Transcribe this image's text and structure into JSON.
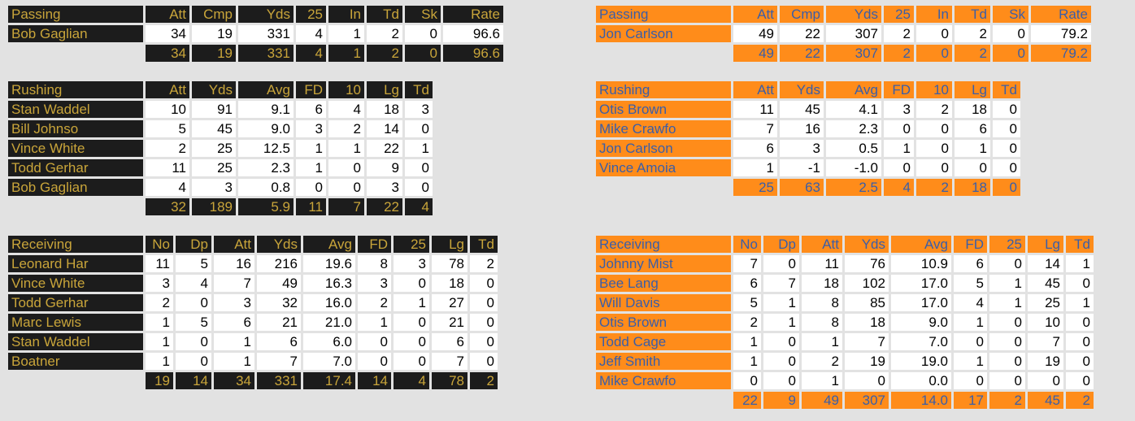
{
  "colors": {
    "home_bg": "#1c1c1c",
    "home_text": "#c9a53a",
    "away_bg": "#ff8c1a",
    "away_text": "#3a5ea8",
    "cell_bg": "#ffffff",
    "page_bg": "#e2e2e2"
  },
  "home": {
    "passing": {
      "headers": [
        "Passing",
        "Att",
        "Cmp",
        "Yds",
        "25",
        "In",
        "Td",
        "Sk",
        "Rate"
      ],
      "rows": [
        {
          "name": "Bob Gaglian",
          "values": [
            "34",
            "19",
            "331",
            "4",
            "1",
            "2",
            "0",
            "96.6"
          ]
        }
      ],
      "totals": [
        "34",
        "19",
        "331",
        "4",
        "1",
        "2",
        "0",
        "96.6"
      ]
    },
    "rushing": {
      "headers": [
        "Rushing",
        "Att",
        "Yds",
        "Avg",
        "FD",
        "10",
        "Lg",
        "Td"
      ],
      "rows": [
        {
          "name": "Stan Waddel",
          "values": [
            "10",
            "91",
            "9.1",
            "6",
            "4",
            "18",
            "3"
          ]
        },
        {
          "name": "Bill Johnso",
          "values": [
            "5",
            "45",
            "9.0",
            "3",
            "2",
            "14",
            "0"
          ]
        },
        {
          "name": "Vince White",
          "values": [
            "2",
            "25",
            "12.5",
            "1",
            "1",
            "22",
            "1"
          ]
        },
        {
          "name": "Todd Gerhar",
          "values": [
            "11",
            "25",
            "2.3",
            "1",
            "0",
            "9",
            "0"
          ]
        },
        {
          "name": "Bob Gaglian",
          "values": [
            "4",
            "3",
            "0.8",
            "0",
            "0",
            "3",
            "0"
          ]
        }
      ],
      "totals": [
        "32",
        "189",
        "5.9",
        "11",
        "7",
        "22",
        "4"
      ]
    },
    "receiving": {
      "headers": [
        "Receiving",
        "No",
        "Dp",
        "Att",
        "Yds",
        "Avg",
        "FD",
        "25",
        "Lg",
        "Td"
      ],
      "rows": [
        {
          "name": "Leonard Har",
          "values": [
            "11",
            "5",
            "16",
            "216",
            "19.6",
            "8",
            "3",
            "78",
            "2"
          ]
        },
        {
          "name": "Vince White",
          "values": [
            "3",
            "4",
            "7",
            "49",
            "16.3",
            "3",
            "0",
            "18",
            "0"
          ]
        },
        {
          "name": "Todd Gerhar",
          "values": [
            "2",
            "0",
            "3",
            "32",
            "16.0",
            "2",
            "1",
            "27",
            "0"
          ]
        },
        {
          "name": "Marc Lewis",
          "values": [
            "1",
            "5",
            "6",
            "21",
            "21.0",
            "1",
            "0",
            "21",
            "0"
          ]
        },
        {
          "name": "Stan Waddel",
          "values": [
            "1",
            "0",
            "1",
            "6",
            "6.0",
            "0",
            "0",
            "6",
            "0"
          ]
        },
        {
          "name": "Boatner",
          "values": [
            "1",
            "0",
            "1",
            "7",
            "7.0",
            "0",
            "0",
            "7",
            "0"
          ]
        }
      ],
      "totals": [
        "19",
        "14",
        "34",
        "331",
        "17.4",
        "14",
        "4",
        "78",
        "2"
      ]
    }
  },
  "away": {
    "passing": {
      "headers": [
        "Passing",
        "Att",
        "Cmp",
        "Yds",
        "25",
        "In",
        "Td",
        "Sk",
        "Rate"
      ],
      "rows": [
        {
          "name": "Jon Carlson",
          "values": [
            "49",
            "22",
            "307",
            "2",
            "0",
            "2",
            "0",
            "79.2"
          ]
        }
      ],
      "totals": [
        "49",
        "22",
        "307",
        "2",
        "0",
        "2",
        "0",
        "79.2"
      ]
    },
    "rushing": {
      "headers": [
        "Rushing",
        "Att",
        "Yds",
        "Avg",
        "FD",
        "10",
        "Lg",
        "Td"
      ],
      "rows": [
        {
          "name": "Otis Brown",
          "values": [
            "11",
            "45",
            "4.1",
            "3",
            "2",
            "18",
            "0"
          ]
        },
        {
          "name": "Mike Crawfo",
          "values": [
            "7",
            "16",
            "2.3",
            "0",
            "0",
            "6",
            "0"
          ]
        },
        {
          "name": "Jon Carlson",
          "values": [
            "6",
            "3",
            "0.5",
            "1",
            "0",
            "1",
            "0"
          ]
        },
        {
          "name": "Vince Amoia",
          "values": [
            "1",
            "-1",
            "-1.0",
            "0",
            "0",
            "0",
            "0"
          ]
        }
      ],
      "totals": [
        "25",
        "63",
        "2.5",
        "4",
        "2",
        "18",
        "0"
      ]
    },
    "receiving": {
      "headers": [
        "Receiving",
        "No",
        "Dp",
        "Att",
        "Yds",
        "Avg",
        "FD",
        "25",
        "Lg",
        "Td"
      ],
      "rows": [
        {
          "name": "Johnny Mist",
          "values": [
            "7",
            "0",
            "11",
            "76",
            "10.9",
            "6",
            "0",
            "14",
            "1"
          ]
        },
        {
          "name": "Bee Lang",
          "values": [
            "6",
            "7",
            "18",
            "102",
            "17.0",
            "5",
            "1",
            "45",
            "0"
          ]
        },
        {
          "name": "Will Davis",
          "values": [
            "5",
            "1",
            "8",
            "85",
            "17.0",
            "4",
            "1",
            "25",
            "1"
          ]
        },
        {
          "name": "Otis Brown",
          "values": [
            "2",
            "1",
            "8",
            "18",
            "9.0",
            "1",
            "0",
            "10",
            "0"
          ]
        },
        {
          "name": "Todd Cage",
          "values": [
            "1",
            "0",
            "1",
            "7",
            "7.0",
            "0",
            "0",
            "7",
            "0"
          ]
        },
        {
          "name": "Jeff Smith",
          "values": [
            "1",
            "0",
            "2",
            "19",
            "19.0",
            "1",
            "0",
            "19",
            "0"
          ]
        },
        {
          "name": "Mike Crawfo",
          "values": [
            "0",
            "0",
            "1",
            "0",
            "0.0",
            "0",
            "0",
            "0",
            "0"
          ]
        }
      ],
      "totals": [
        "22",
        "9",
        "49",
        "307",
        "14.0",
        "17",
        "2",
        "45",
        "2"
      ]
    }
  }
}
